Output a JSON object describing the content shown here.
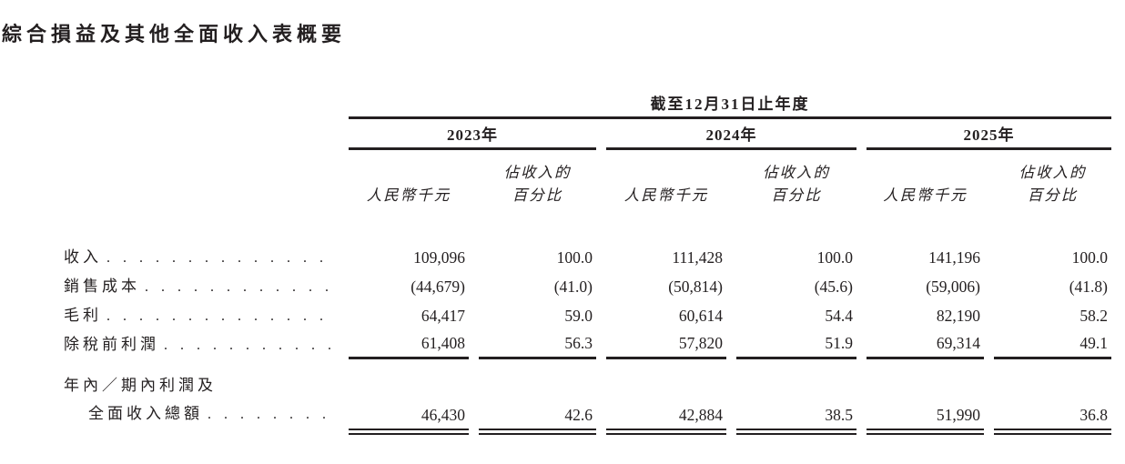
{
  "document": {
    "title": "綜合損益及其他全面收入表概要",
    "colors": {
      "text": "#231f20",
      "rule": "#231f20",
      "background": "#ffffff"
    }
  },
  "table": {
    "period_header": "截至12月31日止年度",
    "years": [
      "2023年",
      "2024年",
      "2025年"
    ],
    "column_headers": {
      "amount": "人民幣千元",
      "percent_line1": "佔收入的",
      "percent_line2": "百分比"
    },
    "leader_dots": ". . . . . . . . . . . . . . . . . . . . . . . .",
    "rows": [
      {
        "label": "收入",
        "values": [
          "109,096",
          "100.0",
          "111,428",
          "100.0",
          "141,196",
          "100.0"
        ]
      },
      {
        "label": "銷售成本",
        "values": [
          "(44,679)",
          "(41.0)",
          "(50,814)",
          "(45.6)",
          "(59,006)",
          "(41.8)"
        ]
      },
      {
        "label": "毛利",
        "values": [
          "64,417",
          "59.0",
          "60,614",
          "54.4",
          "82,190",
          "58.2"
        ]
      },
      {
        "label": "除稅前利潤",
        "values": [
          "61,408",
          "56.3",
          "57,820",
          "51.9",
          "69,314",
          "49.1"
        ]
      },
      {
        "label_line1": "年內／期內利潤及",
        "label_line2": "全面收入總額",
        "values": [
          "46,430",
          "42.6",
          "42,884",
          "38.5",
          "51,990",
          "36.8"
        ]
      }
    ]
  }
}
